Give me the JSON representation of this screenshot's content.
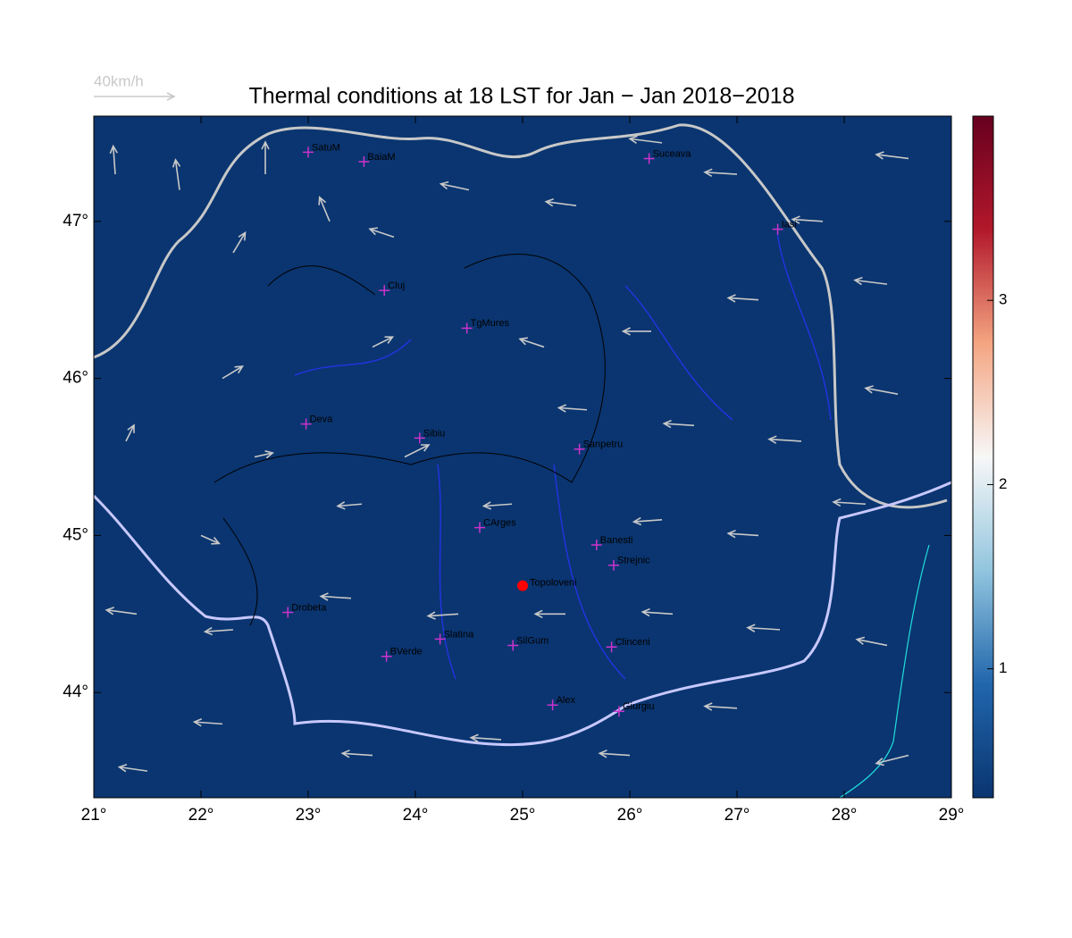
{
  "title": "Thermal conditions at 18 LST for Jan − Jan  2018−2018",
  "wind_legend": {
    "label": "40km/h",
    "speed": 40,
    "color": "#c8c8c8"
  },
  "map": {
    "xlim": [
      21,
      29
    ],
    "ylim": [
      43.33,
      47.67
    ],
    "xticks": [
      {
        "value": 21,
        "label": "21°"
      },
      {
        "value": 22,
        "label": "22°"
      },
      {
        "value": 23,
        "label": "23°"
      },
      {
        "value": 24,
        "label": "24°"
      },
      {
        "value": 25,
        "label": "25°"
      },
      {
        "value": 26,
        "label": "26°"
      },
      {
        "value": 27,
        "label": "27°"
      },
      {
        "value": 28,
        "label": "28°"
      },
      {
        "value": 29,
        "label": "29°"
      }
    ],
    "yticks": [
      {
        "value": 44,
        "label": "44°"
      },
      {
        "value": 45,
        "label": "45°"
      },
      {
        "value": 46,
        "label": "46°"
      },
      {
        "value": 47,
        "label": "47°"
      }
    ]
  },
  "colorbar": {
    "lim": [
      0.3,
      4
    ],
    "ticks": [
      1,
      2,
      3
    ],
    "colors": [
      "#0a3570",
      "#2166ac",
      "#92c5de",
      "#f7f7f7",
      "#f4a582",
      "#b2182b",
      "#67001f"
    ]
  },
  "cities": [
    {
      "name": "SatuM",
      "lon": 23.0,
      "lat": 47.44
    },
    {
      "name": "BaiaM",
      "lon": 23.52,
      "lat": 47.38
    },
    {
      "name": "Suceava",
      "lon": 26.18,
      "lat": 47.4
    },
    {
      "name": "Iasi",
      "lon": 27.38,
      "lat": 46.95
    },
    {
      "name": "Cluj",
      "lon": 23.71,
      "lat": 46.56
    },
    {
      "name": "TgMures",
      "lon": 24.48,
      "lat": 46.32
    },
    {
      "name": "Deva",
      "lon": 22.98,
      "lat": 45.71
    },
    {
      "name": "Sibiu",
      "lon": 24.04,
      "lat": 45.62
    },
    {
      "name": "Sanpetru",
      "lon": 25.53,
      "lat": 45.55
    },
    {
      "name": "CArges",
      "lon": 24.6,
      "lat": 45.05
    },
    {
      "name": "Banesti",
      "lon": 25.69,
      "lat": 44.94
    },
    {
      "name": "Strejnic",
      "lon": 25.85,
      "lat": 44.81
    },
    {
      "name": "Drobeta",
      "lon": 22.81,
      "lat": 44.51
    },
    {
      "name": "Slatina",
      "lon": 24.23,
      "lat": 44.34
    },
    {
      "name": "SilGum",
      "lon": 24.91,
      "lat": 44.3
    },
    {
      "name": "BVerde",
      "lon": 23.73,
      "lat": 44.23
    },
    {
      "name": "Clinceni",
      "lon": 25.83,
      "lat": 44.29
    },
    {
      "name": "Alex",
      "lon": 25.28,
      "lat": 43.92
    },
    {
      "name": "Giurgiu",
      "lon": 25.9,
      "lat": 43.88
    }
  ],
  "city_color": "#cc33cc",
  "highlight": {
    "name": "Topoloveni",
    "lon": 25.0,
    "lat": 44.68,
    "color": "#ff0000"
  },
  "wind": {
    "color": "#c8c8c8",
    "arrows": [
      [
        21.2,
        47.3,
        -1,
        14
      ],
      [
        21.8,
        47.2,
        -2,
        15
      ],
      [
        22.6,
        47.3,
        0,
        16
      ],
      [
        23.2,
        47.0,
        -5,
        12
      ],
      [
        22.3,
        46.8,
        6,
        10
      ],
      [
        23.8,
        46.9,
        -12,
        4
      ],
      [
        24.5,
        47.2,
        -14,
        3
      ],
      [
        25.5,
        47.1,
        -15,
        2
      ],
      [
        26.3,
        47.5,
        -16,
        2
      ],
      [
        27.0,
        47.3,
        -16,
        1
      ],
      [
        27.8,
        47.0,
        -15,
        1
      ],
      [
        28.6,
        47.4,
        -16,
        2
      ],
      [
        28.4,
        46.6,
        -16,
        2
      ],
      [
        27.2,
        46.5,
        -15,
        1
      ],
      [
        26.2,
        46.3,
        -14,
        0
      ],
      [
        25.2,
        46.2,
        -12,
        4
      ],
      [
        23.6,
        46.2,
        10,
        5
      ],
      [
        22.2,
        46.0,
        10,
        6
      ],
      [
        21.3,
        45.6,
        4,
        8
      ],
      [
        22.5,
        45.5,
        9,
        2
      ],
      [
        23.9,
        45.5,
        12,
        6
      ],
      [
        25.6,
        45.8,
        -14,
        1
      ],
      [
        26.6,
        45.7,
        -15,
        1
      ],
      [
        27.6,
        45.6,
        -16,
        1
      ],
      [
        28.5,
        45.9,
        -16,
        3
      ],
      [
        28.2,
        45.2,
        -16,
        1
      ],
      [
        27.2,
        45.0,
        -15,
        1
      ],
      [
        26.3,
        45.1,
        -14,
        -1
      ],
      [
        24.9,
        45.2,
        -14,
        -1
      ],
      [
        23.5,
        45.2,
        -12,
        -1
      ],
      [
        22.0,
        45.0,
        9,
        -4
      ],
      [
        21.4,
        44.5,
        -15,
        2
      ],
      [
        22.3,
        44.4,
        -14,
        -1
      ],
      [
        23.4,
        44.6,
        -15,
        1
      ],
      [
        24.4,
        44.5,
        -15,
        -1
      ],
      [
        25.4,
        44.5,
        -15,
        0
      ],
      [
        26.4,
        44.5,
        -15,
        1
      ],
      [
        27.4,
        44.4,
        -16,
        1
      ],
      [
        28.4,
        44.3,
        -15,
        3
      ],
      [
        27.0,
        43.9,
        -16,
        1
      ],
      [
        26.0,
        43.6,
        -15,
        1
      ],
      [
        24.8,
        43.7,
        -15,
        1
      ],
      [
        23.6,
        43.6,
        -15,
        1
      ],
      [
        22.2,
        43.8,
        -14,
        1
      ],
      [
        28.6,
        43.6,
        -16,
        -4
      ],
      [
        21.5,
        43.5,
        -14,
        2
      ]
    ]
  }
}
